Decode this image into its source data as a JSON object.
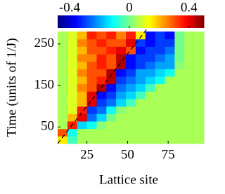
{
  "chart_data": {
    "type": "heatmap",
    "x_label": "Lattice site",
    "y_label": "Time (units of 1/J)",
    "colormap": "jet",
    "xbins": [
      7,
      13,
      19,
      25,
      31,
      37,
      43,
      49,
      55,
      61,
      67,
      73,
      79,
      85,
      91,
      97
    ],
    "ybins": [
      10,
      28,
      46,
      64,
      82,
      100,
      118,
      136,
      154,
      172,
      190,
      208,
      226,
      244,
      262,
      280
    ],
    "z": [
      [
        0.15,
        -0.05,
        0.05,
        0.05,
        0.05,
        0.05,
        0.05,
        0.05,
        0.05,
        0.05,
        0.05,
        0.05,
        0.05,
        0.05,
        0.05
      ],
      [
        0.3,
        -0.1,
        0.05,
        0.05,
        0.05,
        0.05,
        0.05,
        0.05,
        0.05,
        0.05,
        0.05,
        0.05,
        0.05,
        0.05,
        0.05
      ],
      [
        0.05,
        0.35,
        -0.15,
        -0.1,
        0.02,
        0.05,
        0.05,
        0.05,
        0.05,
        0.05,
        0.05,
        0.05,
        0.05,
        0.05,
        0.05
      ],
      [
        0.05,
        0.2,
        0.4,
        -0.25,
        -0.15,
        0.0,
        0.05,
        0.05,
        0.05,
        0.05,
        0.05,
        0.05,
        0.05,
        0.05,
        0.05
      ],
      [
        0.05,
        0.1,
        0.35,
        -0.3,
        -0.25,
        -0.1,
        0.02,
        0.05,
        0.05,
        0.05,
        0.05,
        0.05,
        0.05,
        0.05,
        0.05
      ],
      [
        0.05,
        0.1,
        0.2,
        0.4,
        -0.3,
        -0.25,
        -0.15,
        -0.05,
        0.05,
        0.05,
        0.05,
        0.05,
        0.05,
        0.05,
        0.05
      ],
      [
        0.05,
        0.1,
        0.2,
        0.4,
        -0.35,
        -0.3,
        -0.2,
        -0.15,
        -0.05,
        0.05,
        0.05,
        0.05,
        0.05,
        0.05,
        0.05
      ],
      [
        0.05,
        0.1,
        0.25,
        0.3,
        0.45,
        -0.35,
        -0.25,
        -0.2,
        -0.15,
        -0.05,
        0.05,
        0.05,
        0.05,
        0.05,
        0.05
      ],
      [
        0.05,
        0.1,
        0.2,
        0.3,
        0.35,
        0.45,
        -0.3,
        -0.25,
        -0.2,
        -0.15,
        -0.1,
        0.05,
        0.05,
        0.05,
        0.05
      ],
      [
        0.05,
        0.1,
        0.25,
        0.3,
        0.3,
        0.45,
        -0.35,
        -0.3,
        -0.2,
        -0.2,
        -0.15,
        -0.1,
        0.05,
        0.05,
        0.05
      ],
      [
        0.05,
        0.1,
        0.2,
        0.3,
        0.35,
        0.3,
        0.45,
        -0.35,
        -0.3,
        -0.25,
        -0.2,
        -0.2,
        0.02,
        0.05,
        0.05
      ],
      [
        0.05,
        0.1,
        0.25,
        0.25,
        0.35,
        0.3,
        0.45,
        -0.35,
        -0.3,
        -0.3,
        -0.25,
        -0.2,
        0.0,
        0.05,
        0.05
      ],
      [
        0.05,
        0.1,
        0.2,
        0.3,
        0.3,
        0.35,
        0.4,
        0.3,
        -0.35,
        -0.3,
        -0.3,
        -0.25,
        0.0,
        0.05,
        0.05
      ],
      [
        0.05,
        0.1,
        0.25,
        0.3,
        0.35,
        0.3,
        0.3,
        0.4,
        -0.3,
        -0.35,
        -0.3,
        -0.3,
        0.0,
        0.05,
        0.05
      ],
      [
        0.05,
        0.1,
        0.2,
        0.35,
        0.3,
        0.35,
        0.25,
        0.35,
        0.15,
        -0.35,
        -0.3,
        -0.35,
        0.0,
        0.05,
        0.05
      ]
    ],
    "xlim": [
      7,
      97
    ],
    "ylim": [
      10,
      280
    ],
    "xticks": [
      25,
      50,
      75
    ],
    "yticks": [
      50,
      150,
      250
    ],
    "clim": [
      -0.48,
      0.5
    ],
    "cticks": [
      -0.4,
      0,
      0.4
    ]
  }
}
